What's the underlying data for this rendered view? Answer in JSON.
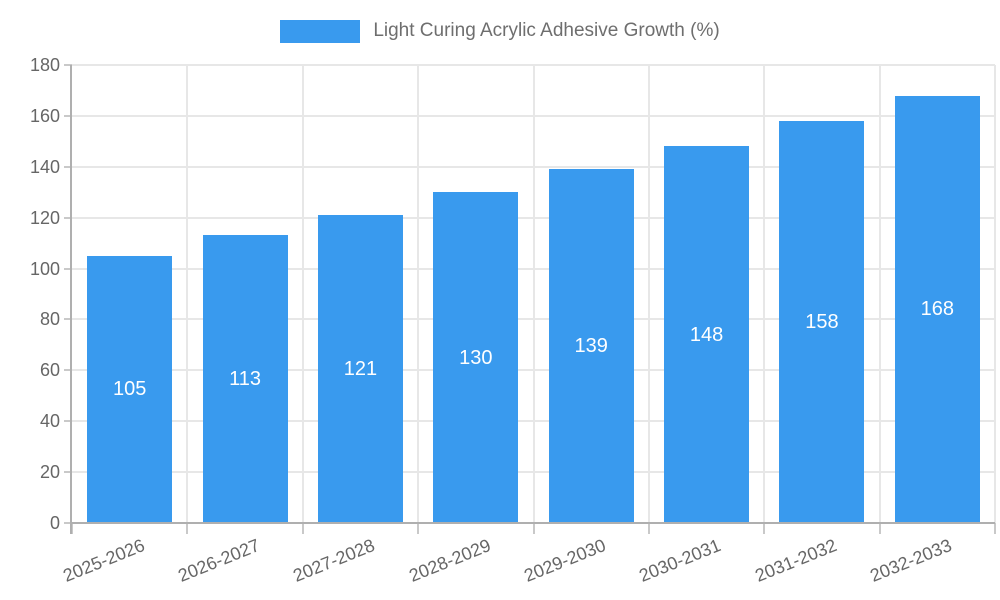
{
  "chart_data": {
    "type": "bar",
    "title": "",
    "legend": {
      "label": "Light Curing Acrylic Adhesive Growth (%)",
      "position": "top-center"
    },
    "categories": [
      "2025-2026",
      "2026-2027",
      "2027-2028",
      "2028-2029",
      "2029-2030",
      "2030-2031",
      "2031-2032",
      "2032-2033"
    ],
    "values": [
      105,
      113,
      121,
      130,
      139,
      148,
      158,
      168
    ],
    "value_labels_inside_bars": true,
    "xlabel": "",
    "ylabel": "",
    "ylim": [
      0,
      180
    ],
    "ytick_step": 20,
    "grid": true,
    "x_label_rotation_deg": -22,
    "colors": {
      "bar": "#399AEE",
      "grid": "#E7E7E7",
      "axis": "#AFAFAF",
      "tick": "#C9C9C9",
      "axis_text": "#666666",
      "legend_text": "#6E6E6E",
      "value_text": "#FFFFFF",
      "background": "#FFFFFF"
    }
  }
}
